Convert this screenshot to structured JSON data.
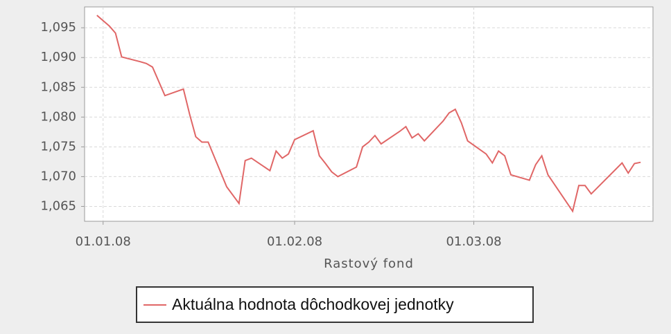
{
  "chart_data": {
    "type": "line",
    "x_label": "Rastový fond",
    "x": [
      "2007-12-31",
      "2008-01-02",
      "2008-01-03",
      "2008-01-04",
      "2008-01-07",
      "2008-01-08",
      "2008-01-09",
      "2008-01-11",
      "2008-01-14",
      "2008-01-15",
      "2008-01-16",
      "2008-01-17",
      "2008-01-18",
      "2008-01-21",
      "2008-01-23",
      "2008-01-24",
      "2008-01-25",
      "2008-01-28",
      "2008-01-29",
      "2008-01-30",
      "2008-01-31",
      "2008-02-01",
      "2008-02-04",
      "2008-02-05",
      "2008-02-06",
      "2008-02-07",
      "2008-02-08",
      "2008-02-11",
      "2008-02-12",
      "2008-02-13",
      "2008-02-14",
      "2008-02-15",
      "2008-02-18",
      "2008-02-19",
      "2008-02-20",
      "2008-02-21",
      "2008-02-22",
      "2008-02-25",
      "2008-02-26",
      "2008-02-27",
      "2008-02-28",
      "2008-02-29",
      "2008-03-03",
      "2008-03-04",
      "2008-03-05",
      "2008-03-06",
      "2008-03-07",
      "2008-03-10",
      "2008-03-11",
      "2008-03-12",
      "2008-03-13",
      "2008-03-17",
      "2008-03-18",
      "2008-03-19",
      "2008-03-20",
      "2008-03-25",
      "2008-03-26",
      "2008-03-27",
      "2008-03-28"
    ],
    "series": [
      {
        "name": "Aktuálna hodnota dôchodkovej jednotky",
        "color": "#e06666",
        "values": [
          1.0971,
          1.0953,
          1.0941,
          1.0901,
          1.0893,
          1.089,
          1.0884,
          1.0836,
          1.0847,
          1.0805,
          1.0767,
          1.0758,
          1.0758,
          1.0683,
          1.0655,
          1.0727,
          1.0731,
          1.071,
          1.0743,
          1.0731,
          1.0738,
          1.0762,
          1.0777,
          1.0735,
          1.0722,
          1.0708,
          1.07,
          1.0716,
          1.075,
          1.0758,
          1.0769,
          1.0755,
          1.0776,
          1.0784,
          1.0765,
          1.0772,
          1.076,
          1.0793,
          1.0807,
          1.0813,
          1.079,
          1.076,
          1.0738,
          1.0723,
          1.0743,
          1.0735,
          1.0703,
          1.0694,
          1.072,
          1.0735,
          1.0703,
          1.0642,
          1.0685,
          1.0685,
          1.0671,
          1.0723,
          1.0706,
          1.0722,
          1.0724
        ]
      }
    ],
    "xlim": [
      "2007-12-29",
      "2008-03-30"
    ],
    "xticks": [
      {
        "value": "2008-01-01",
        "label": "01.01.08"
      },
      {
        "value": "2008-02-01",
        "label": "01.02.08"
      },
      {
        "value": "2008-03-01",
        "label": "01.03.08"
      }
    ],
    "ylim": [
      1.0625,
      1.0985
    ],
    "yticks": [
      {
        "value": 1.065,
        "label": "1,065"
      },
      {
        "value": 1.07,
        "label": "1,070"
      },
      {
        "value": 1.075,
        "label": "1,075"
      },
      {
        "value": 1.08,
        "label": "1,080"
      },
      {
        "value": 1.085,
        "label": "1,085"
      },
      {
        "value": 1.09,
        "label": "1,090"
      },
      {
        "value": 1.095,
        "label": "1,095"
      }
    ],
    "grid": true
  }
}
